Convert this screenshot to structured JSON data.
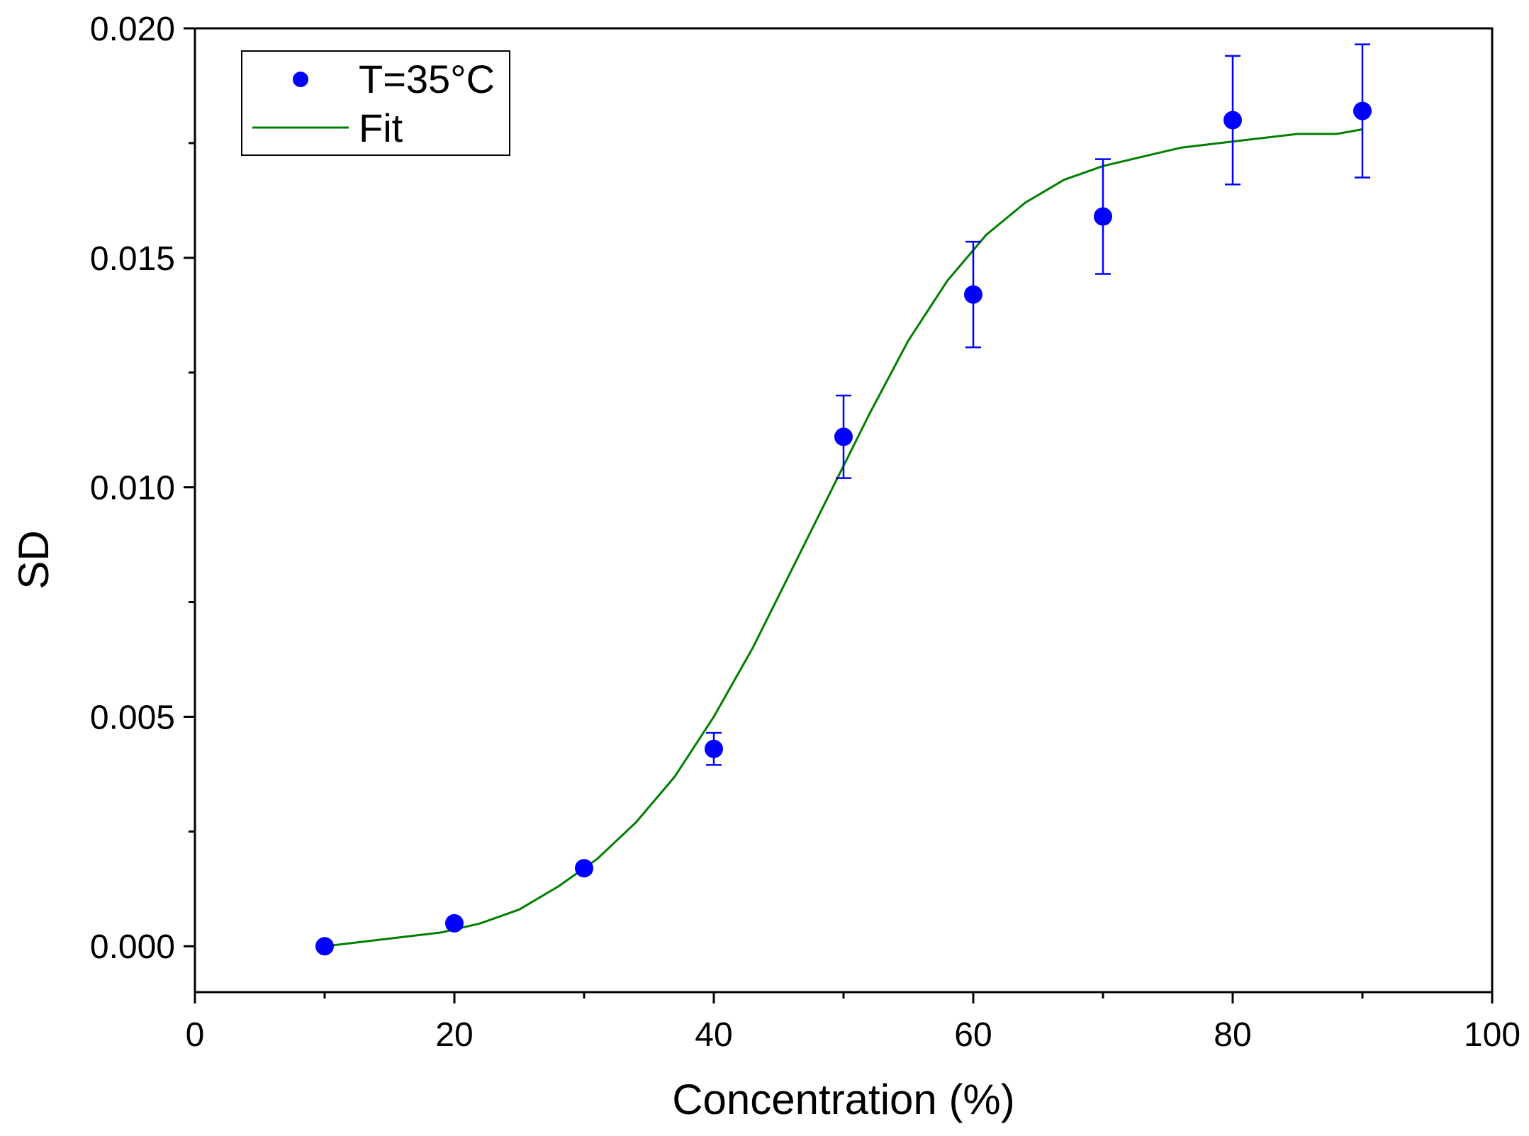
{
  "chart_data": {
    "type": "scatter",
    "title": "",
    "xlabel": "Concentration (%)",
    "ylabel": "SD",
    "xlim": [
      0,
      100
    ],
    "ylim": [
      -0.001,
      0.02
    ],
    "x_ticks": [
      0,
      20,
      40,
      60,
      80,
      100
    ],
    "x_tick_labels": [
      "0",
      "20",
      "40",
      "60",
      "80",
      "100"
    ],
    "x_minor_ticks": [
      10,
      30,
      50,
      70,
      90
    ],
    "y_ticks": [
      0.0,
      0.005,
      0.01,
      0.015,
      0.02
    ],
    "y_tick_labels": [
      "0.000",
      "0.005",
      "0.010",
      "0.015",
      "0.020"
    ],
    "y_minor_ticks": [
      0.0025,
      0.0075,
      0.0125,
      0.0175
    ],
    "grid": false,
    "legend_position": "top-left",
    "series": [
      {
        "name": "T=35°C",
        "kind": "scatter-with-error-bars",
        "color": "#0000ff",
        "x": [
          10,
          20,
          30,
          40,
          50,
          60,
          70,
          80,
          90
        ],
        "y": [
          0.0,
          0.0005,
          0.0017,
          0.0043,
          0.0111,
          0.0142,
          0.0159,
          0.018,
          0.0182
        ],
        "error": [
          0.0,
          0.0001,
          0.0001,
          0.00035,
          0.0009,
          0.00115,
          0.00125,
          0.0014,
          0.00145
        ]
      },
      {
        "name": "Fit",
        "kind": "line",
        "color": "#007f00",
        "x": [
          10,
          13,
          16,
          19,
          22,
          25,
          28,
          31,
          34,
          37,
          40,
          43,
          46,
          49,
          52,
          55,
          58,
          61,
          64,
          67,
          70,
          73,
          76,
          79,
          82,
          85,
          88,
          90
        ],
        "y": [
          0.0,
          0.0001,
          0.0002,
          0.0003,
          0.0005,
          0.0008,
          0.0013,
          0.0019,
          0.0027,
          0.0037,
          0.005,
          0.0065,
          0.0082,
          0.0099,
          0.0116,
          0.0132,
          0.0145,
          0.0155,
          0.0162,
          0.0167,
          0.017,
          0.0172,
          0.0174,
          0.0175,
          0.0176,
          0.0177,
          0.0177,
          0.0178
        ]
      }
    ]
  }
}
